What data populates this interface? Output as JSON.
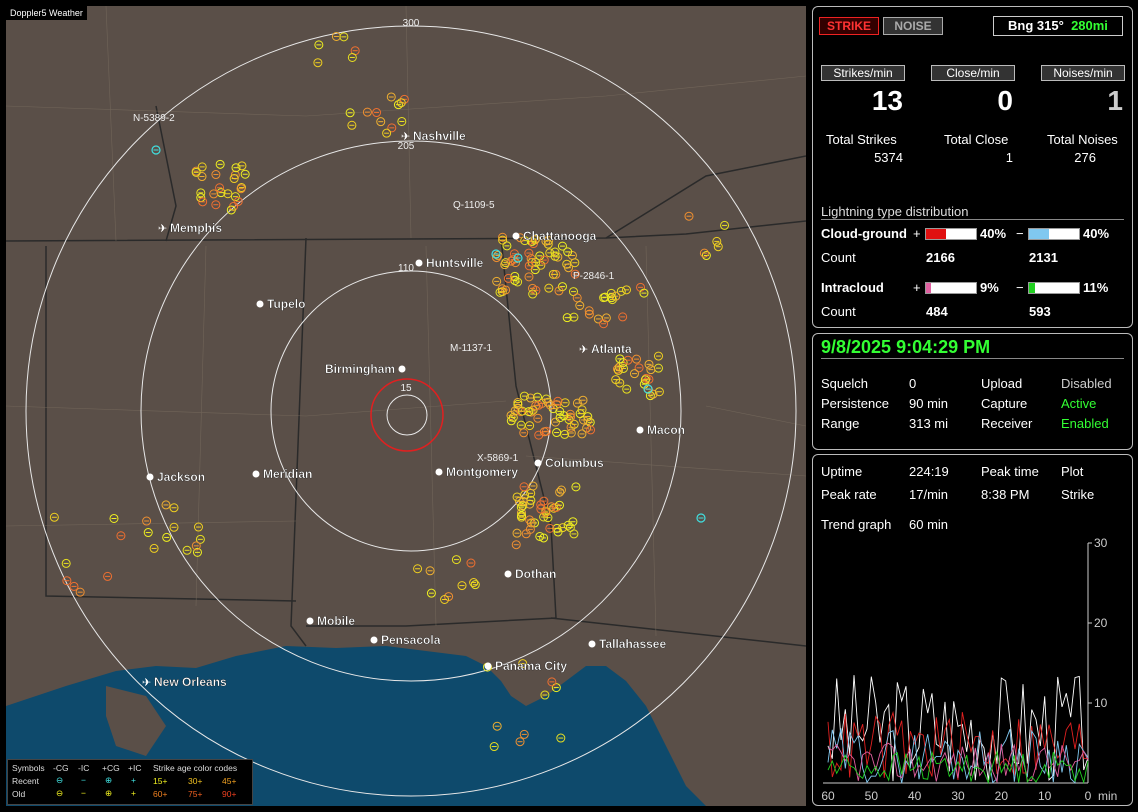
{
  "map": {
    "app_label": "Doppler5 Weather",
    "range_rings": [
      "300",
      "205",
      "110",
      "15"
    ],
    "cities": [
      {
        "name": "Nashville",
        "type": "airport"
      },
      {
        "name": "Memphis",
        "type": "airport"
      },
      {
        "name": "Chattanooga",
        "type": "city"
      },
      {
        "name": "Huntsville",
        "type": "city"
      },
      {
        "name": "Tupelo",
        "type": "city"
      },
      {
        "name": "Atlanta",
        "type": "airport"
      },
      {
        "name": "Birmingham",
        "type": "city"
      },
      {
        "name": "Macon",
        "type": "city"
      },
      {
        "name": "Jackson",
        "type": "city"
      },
      {
        "name": "Meridian",
        "type": "city"
      },
      {
        "name": "Montgomery",
        "type": "city"
      },
      {
        "name": "Columbus",
        "type": "city"
      },
      {
        "name": "Dothan",
        "type": "city"
      },
      {
        "name": "Mobile",
        "type": "city"
      },
      {
        "name": "Pensacola",
        "type": "city"
      },
      {
        "name": "Tallahassee",
        "type": "city"
      },
      {
        "name": "Panama City",
        "type": "city"
      },
      {
        "name": "New Orleans",
        "type": "airport"
      }
    ],
    "storm_ids": [
      {
        "label": "N-5389-2"
      },
      {
        "label": "Q-1109-5"
      },
      {
        "label": "P-2846-1"
      },
      {
        "label": "M-1137-1"
      },
      {
        "label": "X-5869-1"
      }
    ],
    "legend": {
      "symbols_label": "Symbols",
      "cols": [
        "-CG",
        "-IC",
        "+CG",
        "+IC"
      ],
      "age_title": "Strike age color codes",
      "recent_label": "Recent",
      "old_label": "Old",
      "ages_recent": [
        "15+",
        "30+",
        "45+"
      ],
      "ages_old": [
        "60+",
        "75+",
        "90+"
      ]
    },
    "colors": {
      "land": "#5a4f48",
      "water": "#0e4a6c",
      "rings": "#e8e8e8",
      "close_ring": "#e02020"
    }
  },
  "status": {
    "strike_btn": "STRIKE",
    "noise_btn": "NOISE",
    "bearing": "Bng 315°",
    "bearing_range": "280mi",
    "rate_headers": [
      "Strikes/min",
      "Close/min",
      "Noises/min"
    ],
    "rates": [
      "13",
      "0",
      "1"
    ],
    "total_labels": [
      "Total Strikes",
      "Total Close",
      "Total Noises"
    ],
    "totals": [
      "5374",
      "1",
      "276"
    ],
    "dist_title": "Lightning type distribution",
    "cg_label": "Cloud-ground",
    "ic_label": "Intracloud",
    "count_label": "Count",
    "plus": "+",
    "minus": "−",
    "cg_pos_pct": "40%",
    "cg_neg_pct": "40%",
    "cg_pos_frac": 0.4,
    "cg_neg_frac": 0.4,
    "cg_pos_count": "2166",
    "cg_neg_count": "2131",
    "ic_pos_pct": "9%",
    "ic_neg_pct": "11%",
    "ic_pos_frac": 0.09,
    "ic_neg_frac": 0.11,
    "ic_pos_count": "484",
    "ic_neg_count": "593",
    "bar_colors": {
      "cg_pos": "#e01010",
      "cg_neg": "#80c8f0",
      "ic_pos": "#e060a0",
      "ic_neg": "#20d020"
    }
  },
  "settings": {
    "datetime": "9/8/2025 9:04:29 PM",
    "rows": [
      {
        "k": "Squelch",
        "v": "0",
        "k2": "Upload",
        "v2": "Disabled"
      },
      {
        "k": "Persistence",
        "v": "90 min",
        "k2": "Capture",
        "v2": "Active"
      },
      {
        "k": "Range",
        "v": "313 mi",
        "k2": "Receiver",
        "v2": "Enabled"
      }
    ]
  },
  "trend": {
    "uptime_label": "Uptime",
    "uptime": "224:19",
    "peak_time_label": "Peak time",
    "peak_time": "8:38 PM",
    "plot_label": "Plot",
    "plot_value": "Strike",
    "peak_rate_label": "Peak rate",
    "peak_rate": "17/min",
    "trend_label": "Trend graph",
    "trend_value": "60 min",
    "y_ticks": [
      "30",
      "20",
      "10"
    ],
    "x_ticks": [
      "60",
      "50",
      "40",
      "30",
      "20",
      "10",
      "0"
    ],
    "x_unit": "min"
  }
}
